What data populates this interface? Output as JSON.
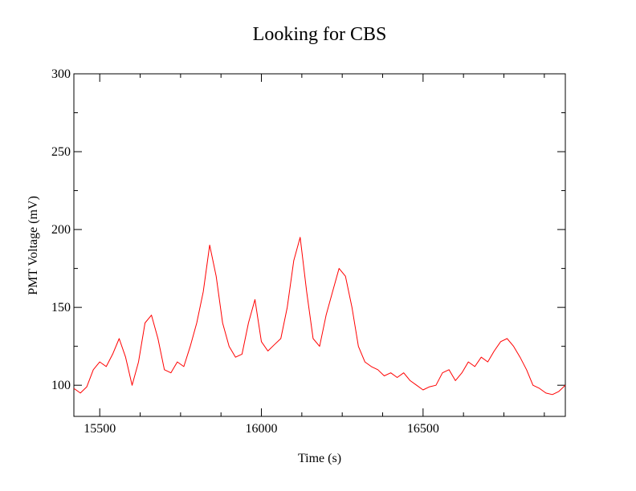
{
  "chart_data": {
    "type": "line",
    "title": "Looking for CBS",
    "xlabel": "Time (s)",
    "ylabel": "PMT Voltage (mV)",
    "xlim": [
      15420,
      16940
    ],
    "ylim": [
      80,
      300
    ],
    "x_ticks": [
      15500,
      16000,
      16500
    ],
    "x_minor_step": 125,
    "y_ticks": [
      100,
      150,
      200,
      250,
      300
    ],
    "y_minor_step": 25,
    "grid": false,
    "legend": "none",
    "series_color": "#ff0000",
    "series": [
      {
        "x": [
          15420,
          15440,
          15460,
          15480,
          15500,
          15520,
          15540,
          15560,
          15580,
          15600,
          15620,
          15640,
          15660,
          15680,
          15700,
          15720,
          15740,
          15760,
          15780,
          15800,
          15820,
          15840,
          15860,
          15880,
          15900,
          15920,
          15940,
          15960,
          15980,
          16000,
          16020,
          16040,
          16060,
          16080,
          16100,
          16120,
          16140,
          16160,
          16180,
          16200,
          16220,
          16240,
          16260,
          16280,
          16300,
          16320,
          16340,
          16360,
          16380,
          16400,
          16420,
          16440,
          16460,
          16480,
          16500,
          16520,
          16540,
          16560,
          16580,
          16600,
          16620,
          16640,
          16660,
          16680,
          16700,
          16720,
          16740,
          16760,
          16780,
          16800,
          16820,
          16840,
          16860,
          16880,
          16900,
          16920,
          16940
        ],
        "y": [
          98,
          95,
          99,
          110,
          115,
          112,
          120,
          130,
          118,
          100,
          115,
          140,
          145,
          130,
          110,
          108,
          115,
          112,
          125,
          140,
          160,
          190,
          170,
          140,
          125,
          118,
          120,
          140,
          155,
          128,
          122,
          126,
          130,
          150,
          180,
          195,
          160,
          130,
          125,
          145,
          160,
          175,
          170,
          150,
          125,
          115,
          112,
          110,
          106,
          108,
          105,
          108,
          103,
          100,
          97,
          99,
          100,
          108,
          110,
          103,
          108,
          115,
          112,
          118,
          115,
          122,
          128,
          130,
          125,
          118,
          110,
          100,
          98,
          95,
          94,
          96,
          100
        ]
      }
    ]
  }
}
